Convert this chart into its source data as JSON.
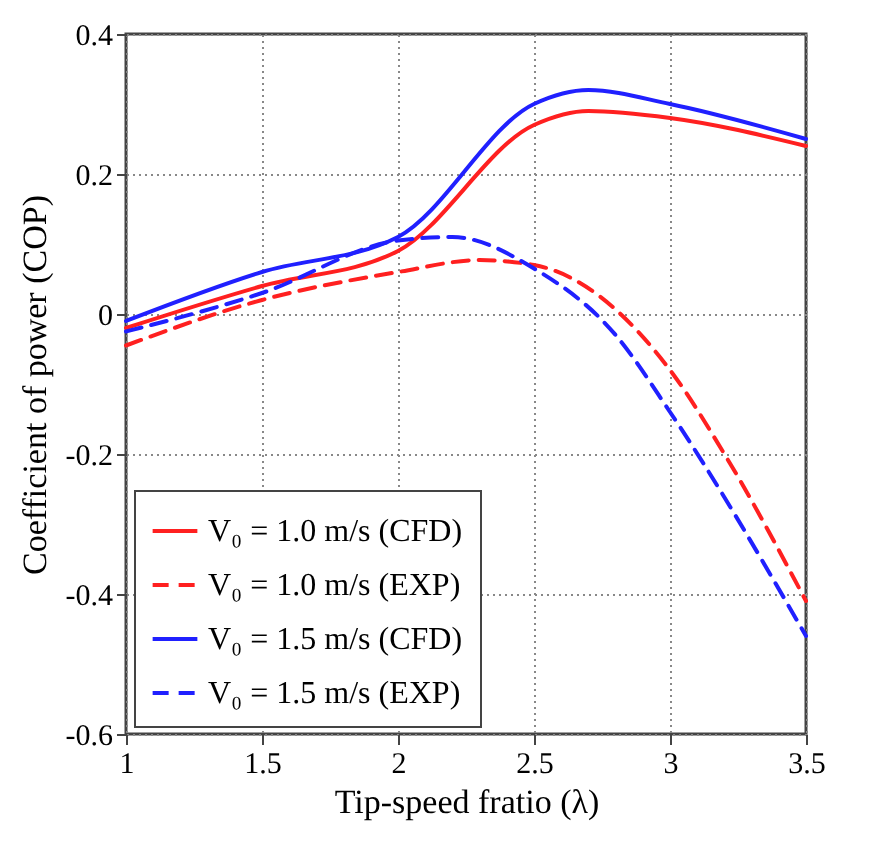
{
  "chart_data": {
    "type": "line",
    "xlabel": "Tip-speed fratio (λ)",
    "ylabel": "Coefficient of power (COP)",
    "xlim": [
      1,
      3.5
    ],
    "xticks": [
      1,
      1.5,
      2,
      2.5,
      3,
      3.5
    ],
    "ylim": [
      -0.6,
      0.4
    ],
    "yticks": [
      -0.6,
      -0.4,
      -0.2,
      0,
      0.2,
      0.4
    ],
    "grid": true,
    "legend": "bottom left",
    "marker": "none",
    "series": [
      {
        "name": "V₀ = 1.0 m/s (CFD)",
        "color": "#ff2020",
        "line_style": "solid",
        "x": [
          1,
          1.5,
          2,
          2.5,
          2.7,
          3,
          3.5
        ],
        "values": [
          -0.02,
          0.04,
          0.09,
          0.27,
          0.29,
          0.28,
          0.24
        ]
      },
      {
        "name": "V₀ = 1.0 m/s (EXP)",
        "color": "#ff2020",
        "line_style": "dashed",
        "x": [
          1,
          1.5,
          2,
          2.3,
          2.5,
          3,
          3.2,
          3.5
        ],
        "values": [
          -0.045,
          0.02,
          0.06,
          0.077,
          0.07,
          -0.08,
          -0.2,
          -0.41
        ]
      },
      {
        "name": "V₀ = 1.5 m/s (CFD)",
        "color": "#2020ff",
        "line_style": "solid",
        "x": [
          1,
          1.5,
          2,
          2.5,
          2.7,
          3,
          3.5
        ],
        "values": [
          -0.01,
          0.06,
          0.11,
          0.3,
          0.32,
          0.3,
          0.25
        ]
      },
      {
        "name": "V₀ = 1.5 m/s (EXP)",
        "color": "#2020ff",
        "line_style": "dashed",
        "x": [
          1,
          1.5,
          2,
          2.2,
          2.5,
          2.8,
          3,
          3.5
        ],
        "values": [
          -0.025,
          0.03,
          0.105,
          0.11,
          0.065,
          -0.03,
          -0.14,
          -0.46
        ]
      }
    ]
  }
}
